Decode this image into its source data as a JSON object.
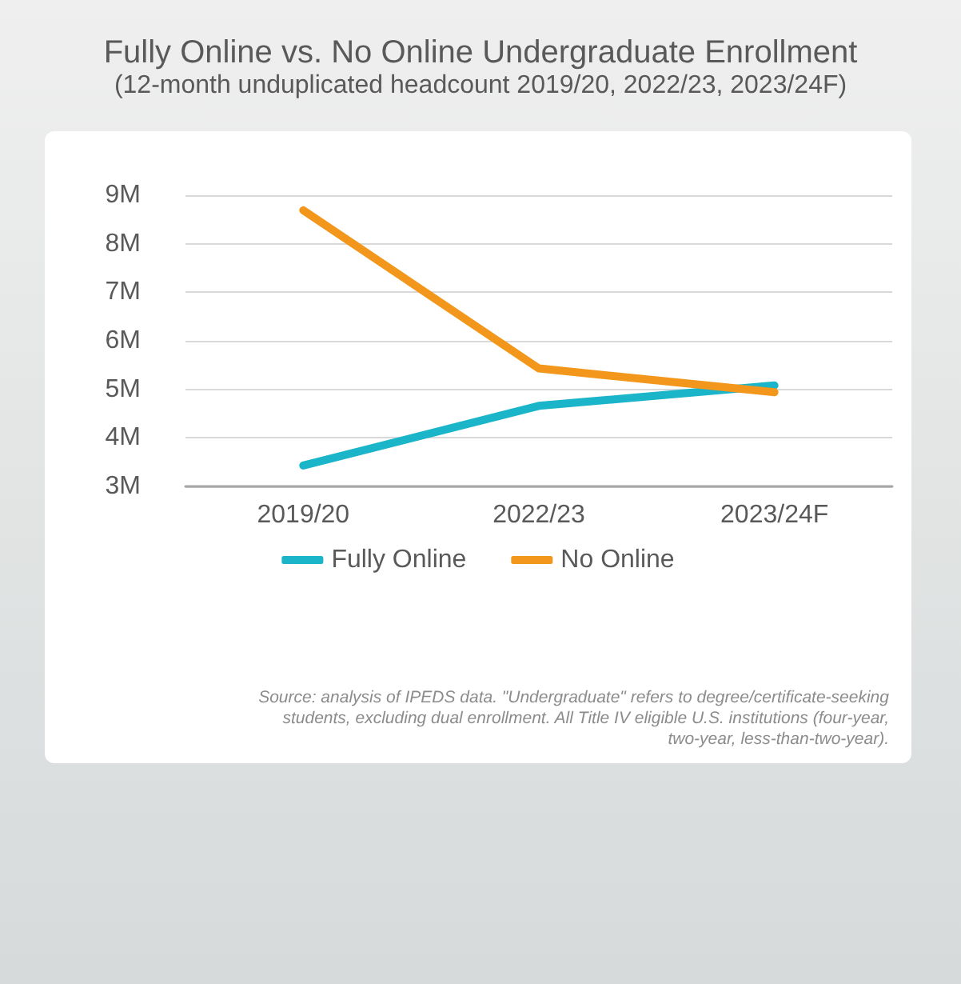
{
  "chart_data": {
    "type": "line",
    "title": "Fully Online vs. No Online Undergraduate Enrollment",
    "subtitle": "(12-month unduplicated headcount 2019/20, 2022/23, 2023/24F)",
    "categories": [
      "2019/20",
      "2022/23",
      "2023/24F"
    ],
    "series": [
      {
        "name": "Fully Online",
        "color": "#1bb5c9",
        "values": [
          3.43,
          4.66,
          5.08
        ]
      },
      {
        "name": "No Online",
        "color": "#f2971b",
        "values": [
          8.69,
          5.43,
          4.94
        ]
      }
    ],
    "ylim": [
      3,
      9
    ],
    "yticks": [
      {
        "value": 3,
        "label": "3M"
      },
      {
        "value": 4,
        "label": "4M"
      },
      {
        "value": 5,
        "label": "5M"
      },
      {
        "value": 6,
        "label": "6M"
      },
      {
        "value": 7,
        "label": "7M"
      },
      {
        "value": 8,
        "label": "8M"
      },
      {
        "value": 9,
        "label": "9M"
      }
    ],
    "grid": "y",
    "legend": "bottom",
    "marker": "none",
    "line_style": "solid",
    "annotations": [
      "Source: analysis of IPEDS data. \"Undergraduate\" refers to degree/certificate-seeking students, excluding dual enrollment. All Title IV eligible U.S. institutions (four-year, two-year, less-than-two-year)."
    ]
  }
}
